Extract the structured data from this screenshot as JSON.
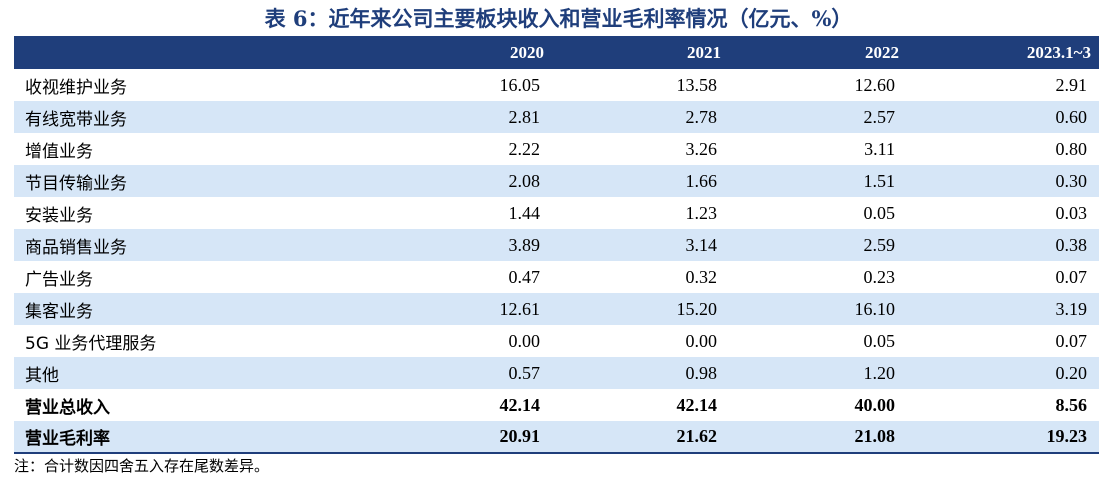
{
  "title": "表 6：近年来公司主要板块收入和营业毛利率情况（亿元、%）",
  "columns": [
    "",
    "2020",
    "2021",
    "2022",
    "2023.1~3"
  ],
  "rows": [
    {
      "label": "收视维护业务",
      "values": [
        "16.05",
        "13.58",
        "12.60",
        "2.91"
      ]
    },
    {
      "label": "有线宽带业务",
      "values": [
        "2.81",
        "2.78",
        "2.57",
        "0.60"
      ]
    },
    {
      "label": "增值业务",
      "values": [
        "2.22",
        "3.26",
        "3.11",
        "0.80"
      ]
    },
    {
      "label": "节目传输业务",
      "values": [
        "2.08",
        "1.66",
        "1.51",
        "0.30"
      ]
    },
    {
      "label": "安装业务",
      "values": [
        "1.44",
        "1.23",
        "0.05",
        "0.03"
      ]
    },
    {
      "label": "商品销售业务",
      "values": [
        "3.89",
        "3.14",
        "2.59",
        "0.38"
      ]
    },
    {
      "label": "广告业务",
      "values": [
        "0.47",
        "0.32",
        "0.23",
        "0.07"
      ]
    },
    {
      "label": "集客业务",
      "values": [
        "12.61",
        "15.20",
        "16.10",
        "3.19"
      ]
    },
    {
      "label": "5G 业务代理服务",
      "values": [
        "0.00",
        "0.00",
        "0.05",
        "0.07"
      ]
    },
    {
      "label": "其他",
      "values": [
        "0.57",
        "0.98",
        "1.20",
        "0.20"
      ]
    },
    {
      "label": "营业总收入",
      "values": [
        "42.14",
        "42.14",
        "40.00",
        "8.56"
      ]
    },
    {
      "label": "营业毛利率",
      "values": [
        "20.91",
        "21.62",
        "21.08",
        "19.23"
      ]
    }
  ],
  "note": "注：合计数因四舍五入存在尾数差异。",
  "colors": {
    "header_bg": "#1f3e7b",
    "stripe": "#d6e6f7",
    "title": "#1f3e7b"
  }
}
